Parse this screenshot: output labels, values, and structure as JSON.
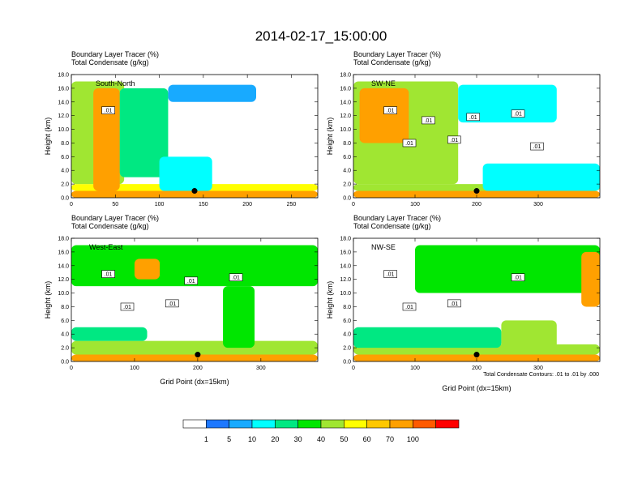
{
  "figure": {
    "title": "2014-02-17_15:00:00",
    "subtitle_tracer": "Boundary Layer Tracer",
    "subtitle_tracer_unit": "(%)",
    "subtitle_condensate": "Total Condensate",
    "subtitle_condensate_unit": "(g/kg)",
    "contour_note": "Total Condensate Contours: .01 to .01 by .000"
  },
  "colorbar": {
    "ticks": [
      "1",
      "5",
      "10",
      "20",
      "30",
      "40",
      "50",
      "60",
      "70",
      "100"
    ],
    "colors": [
      "#ffffff",
      "#1e78ff",
      "#18aaff",
      "#00ffff",
      "#00e882",
      "#00e600",
      "#a0e632",
      "#ffff00",
      "#ffc800",
      "#ffa000",
      "#ff5a00",
      "#ff0000"
    ]
  },
  "chart_data": [
    {
      "type": "heatmap",
      "panel_label": "South-North",
      "xlabel": "",
      "ylabel": "Height (km)",
      "xlim": [
        0,
        280
      ],
      "ylim": [
        0,
        18
      ],
      "xticks": [
        "0",
        "50",
        "100",
        "150",
        "200",
        "250"
      ],
      "yticks": [
        "0.0",
        "2.0",
        "4.0",
        "6.0",
        "8.0",
        "10.0",
        "12.0",
        "14.0",
        "16.0",
        "18.0"
      ],
      "contour_labels": [
        ".01"
      ],
      "marker_x": 140,
      "features": [
        {
          "x": [
            0,
            280
          ],
          "y": [
            0,
            1
          ],
          "v": 80
        },
        {
          "x": [
            0,
            280
          ],
          "y": [
            1,
            2
          ],
          "v": 55
        },
        {
          "x": [
            0,
            60
          ],
          "y": [
            2,
            17
          ],
          "v": 45
        },
        {
          "x": [
            25,
            55
          ],
          "y": [
            1,
            16
          ],
          "v": 85
        },
        {
          "x": [
            55,
            110
          ],
          "y": [
            3,
            16
          ],
          "v": 25
        },
        {
          "x": [
            110,
            210
          ],
          "y": [
            14,
            16.5
          ],
          "v": 8
        },
        {
          "x": [
            100,
            160
          ],
          "y": [
            1,
            6
          ],
          "v": 15
        }
      ]
    },
    {
      "type": "heatmap",
      "panel_label": "SW-NE",
      "xlabel": "",
      "ylabel": "Height (km)",
      "xlim": [
        0,
        400
      ],
      "ylim": [
        0,
        18
      ],
      "xticks": [
        "0",
        "100",
        "200",
        "300"
      ],
      "yticks": [
        "0.0",
        "2.0",
        "4.0",
        "6.0",
        "8.0",
        "10.0",
        "12.0",
        "14.0",
        "16.0",
        "18.0"
      ],
      "contour_labels": [
        ".01",
        ".01",
        ".01",
        ".01",
        ".01",
        ".01",
        ".01"
      ],
      "marker_x": 200,
      "features": [
        {
          "x": [
            0,
            400
          ],
          "y": [
            0,
            1
          ],
          "v": 80
        },
        {
          "x": [
            0,
            400
          ],
          "y": [
            1,
            2
          ],
          "v": 45
        },
        {
          "x": [
            0,
            170
          ],
          "y": [
            2,
            17
          ],
          "v": 40
        },
        {
          "x": [
            10,
            90
          ],
          "y": [
            8,
            16
          ],
          "v": 75
        },
        {
          "x": [
            170,
            330
          ],
          "y": [
            11,
            16.5
          ],
          "v": 12
        },
        {
          "x": [
            210,
            400
          ],
          "y": [
            1,
            5
          ],
          "v": 15
        }
      ]
    },
    {
      "type": "heatmap",
      "panel_label": "West-East",
      "xlabel": "Grid Point (dx=15km)",
      "ylabel": "Height (km)",
      "xlim": [
        0,
        390
      ],
      "ylim": [
        0,
        18
      ],
      "xticks": [
        "0",
        "100",
        "200",
        "300"
      ],
      "yticks": [
        "0.0",
        "2.0",
        "4.0",
        "6.0",
        "8.0",
        "10.0",
        "12.0",
        "14.0",
        "16.0",
        "18.0"
      ],
      "contour_labels": [
        ".01",
        ".01",
        ".01",
        ".01",
        ".01"
      ],
      "marker_x": 200,
      "features": [
        {
          "x": [
            0,
            390
          ],
          "y": [
            0,
            1
          ],
          "v": 80
        },
        {
          "x": [
            0,
            390
          ],
          "y": [
            1,
            3
          ],
          "v": 45
        },
        {
          "x": [
            0,
            390
          ],
          "y": [
            11,
            17
          ],
          "v": 35
        },
        {
          "x": [
            100,
            140
          ],
          "y": [
            12,
            15
          ],
          "v": 70
        },
        {
          "x": [
            240,
            290
          ],
          "y": [
            2,
            11
          ],
          "v": 35
        },
        {
          "x": [
            0,
            120
          ],
          "y": [
            3,
            5
          ],
          "v": 20
        }
      ]
    },
    {
      "type": "heatmap",
      "panel_label": "NW-SE",
      "xlabel": "Grid Point (dx=15km)",
      "ylabel": "Height (km)",
      "xlim": [
        0,
        400
      ],
      "ylim": [
        0,
        18
      ],
      "xticks": [
        "0",
        "100",
        "200",
        "300"
      ],
      "yticks": [
        "0.0",
        "2.0",
        "4.0",
        "6.0",
        "8.0",
        "10.0",
        "12.0",
        "14.0",
        "16.0",
        "18.0"
      ],
      "contour_labels": [
        ".01",
        ".01",
        ".01",
        ".01"
      ],
      "marker_x": 200,
      "features": [
        {
          "x": [
            0,
            400
          ],
          "y": [
            0,
            1
          ],
          "v": 80
        },
        {
          "x": [
            0,
            400
          ],
          "y": [
            1,
            2.5
          ],
          "v": 45
        },
        {
          "x": [
            100,
            400
          ],
          "y": [
            10,
            17
          ],
          "v": 30
        },
        {
          "x": [
            370,
            400
          ],
          "y": [
            8,
            16
          ],
          "v": 75
        },
        {
          "x": [
            240,
            330
          ],
          "y": [
            1,
            6
          ],
          "v": 45
        },
        {
          "x": [
            0,
            240
          ],
          "y": [
            2,
            5
          ],
          "v": 20
        }
      ]
    }
  ]
}
